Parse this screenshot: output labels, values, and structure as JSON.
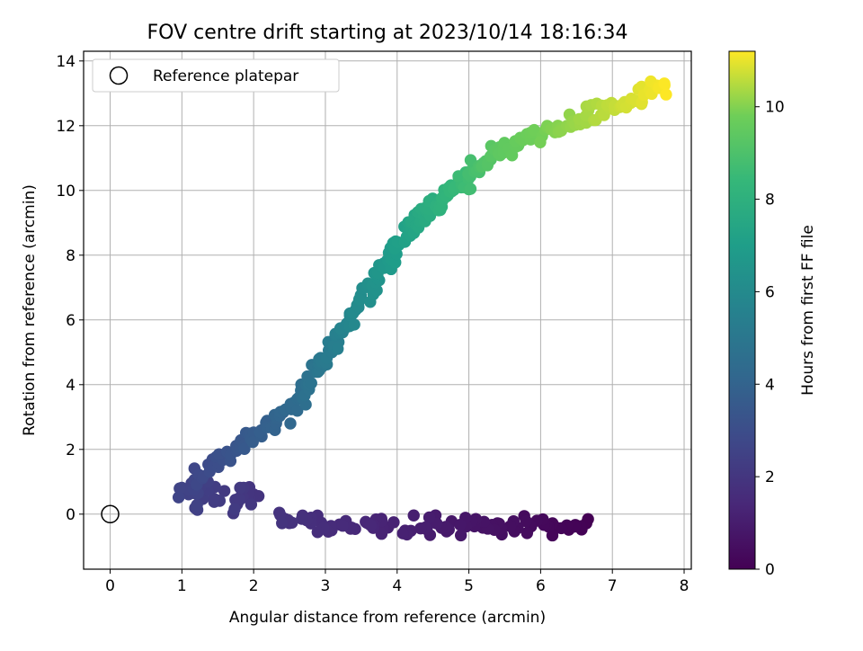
{
  "chart_data": {
    "type": "scatter",
    "title": "FOV centre drift starting at 2023/10/14 18:16:34",
    "xlabel": "Angular distance from reference (arcmin)",
    "ylabel": "Rotation from reference (arcmin)",
    "xlim": [
      -0.37,
      8.1
    ],
    "ylim": [
      -1.7,
      14.3
    ],
    "xticks": [
      0,
      1,
      2,
      3,
      4,
      5,
      6,
      7,
      8
    ],
    "yticks": [
      0,
      2,
      4,
      6,
      8,
      10,
      12,
      14
    ],
    "grid": true,
    "legend": {
      "placement": "upper-left",
      "entries": [
        "Reference platepar"
      ]
    },
    "colorbar": {
      "label": "Hours from first FF file",
      "range": [
        0,
        11.2
      ],
      "ticks": [
        0,
        2,
        4,
        6,
        8,
        10
      ],
      "colormap": "viridis"
    },
    "reference_point": {
      "x": 0,
      "y": 0,
      "label": "Reference platepar"
    },
    "segments": [
      {
        "t0": 0.0,
        "t1": 1.9,
        "x0": 6.65,
        "x1": 2.35,
        "y0": -0.4,
        "y1": -0.3,
        "n": 100,
        "spread": 0.25,
        "xspread": 0.1
      },
      {
        "t0": 1.9,
        "t1": 2.6,
        "x0": 2.0,
        "x1": 1.0,
        "y0": 0.4,
        "y1": 0.8,
        "n": 40,
        "spread": 0.35,
        "xspread": 0.15
      },
      {
        "t0": 2.6,
        "t1": 4.3,
        "x0": 1.1,
        "x1": 2.55,
        "y0": 1.0,
        "y1": 3.3,
        "n": 55,
        "spread": 0.25,
        "xspread": 0.05
      },
      {
        "t0": 4.3,
        "t1": 7.3,
        "x0": 2.55,
        "x1": 4.15,
        "y0": 3.3,
        "y1": 8.8,
        "n": 110,
        "spread": 0.3,
        "xspread": 0.05
      },
      {
        "t0": 7.3,
        "t1": 9.4,
        "x0": 4.15,
        "x1": 5.4,
        "y0": 8.8,
        "y1": 11.2,
        "n": 80,
        "spread": 0.25,
        "xspread": 0.05
      },
      {
        "t0": 9.4,
        "t1": 11.2,
        "x0": 5.4,
        "x1": 7.75,
        "y0": 11.2,
        "y1": 13.2,
        "n": 80,
        "spread": 0.25,
        "xspread": 0.05
      }
    ]
  }
}
